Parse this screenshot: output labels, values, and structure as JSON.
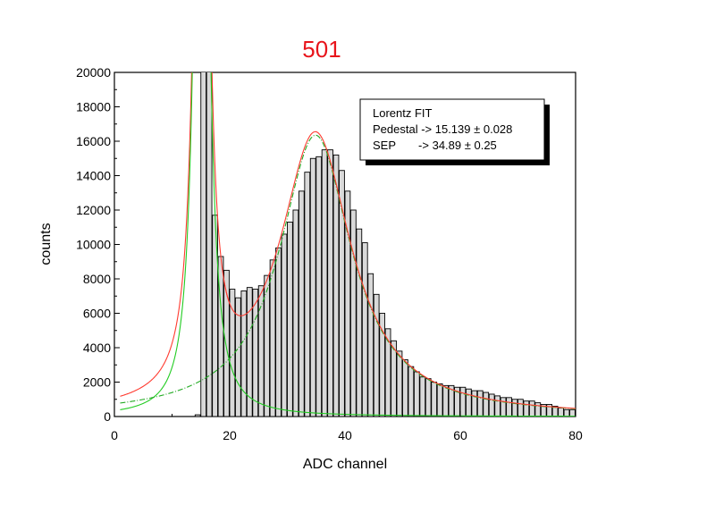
{
  "chart_data": {
    "type": "bar",
    "title": "501",
    "xlabel": "ADC channel",
    "ylabel": "counts",
    "xlim": [
      0,
      80
    ],
    "ylim": [
      0,
      20000
    ],
    "xticks": [
      0,
      20,
      40,
      60,
      80
    ],
    "yticks": [
      0,
      2000,
      4000,
      6000,
      8000,
      10000,
      12000,
      14000,
      16000,
      18000,
      20000
    ],
    "bin_width": 1,
    "bins_start": 14,
    "values": [
      100,
      21000,
      21000,
      11700,
      9300,
      8500,
      7400,
      6900,
      7300,
      7500,
      7400,
      7600,
      8200,
      9100,
      9800,
      10600,
      11300,
      12000,
      13100,
      14200,
      15000,
      15100,
      15500,
      15500,
      15200,
      14300,
      13100,
      12000,
      10900,
      10100,
      8300,
      7100,
      6000,
      5100,
      4400,
      3800,
      3300,
      2900,
      2600,
      2300,
      2200,
      2000,
      1900,
      1800,
      1800,
      1700,
      1700,
      1600,
      1500,
      1500,
      1400,
      1300,
      1200,
      1100,
      1100,
      1000,
      1000,
      900,
      900,
      800,
      700,
      700,
      600,
      500,
      400,
      400
    ],
    "fits": [
      {
        "name": "Lorentz total fit",
        "color": "#ff3b30",
        "style": "solid"
      },
      {
        "name": "Pedestal component",
        "color": "#22cc22",
        "style": "solid"
      },
      {
        "name": "SEP component",
        "color": "#22aa22",
        "style": "dash-dot"
      }
    ],
    "legend": {
      "position": "top-right",
      "lines": [
        "Lorentz FIT",
        "Pedestal -> 15.139 ± 0.028",
        "SEP       -> 34.89 ± 0.25"
      ]
    }
  }
}
